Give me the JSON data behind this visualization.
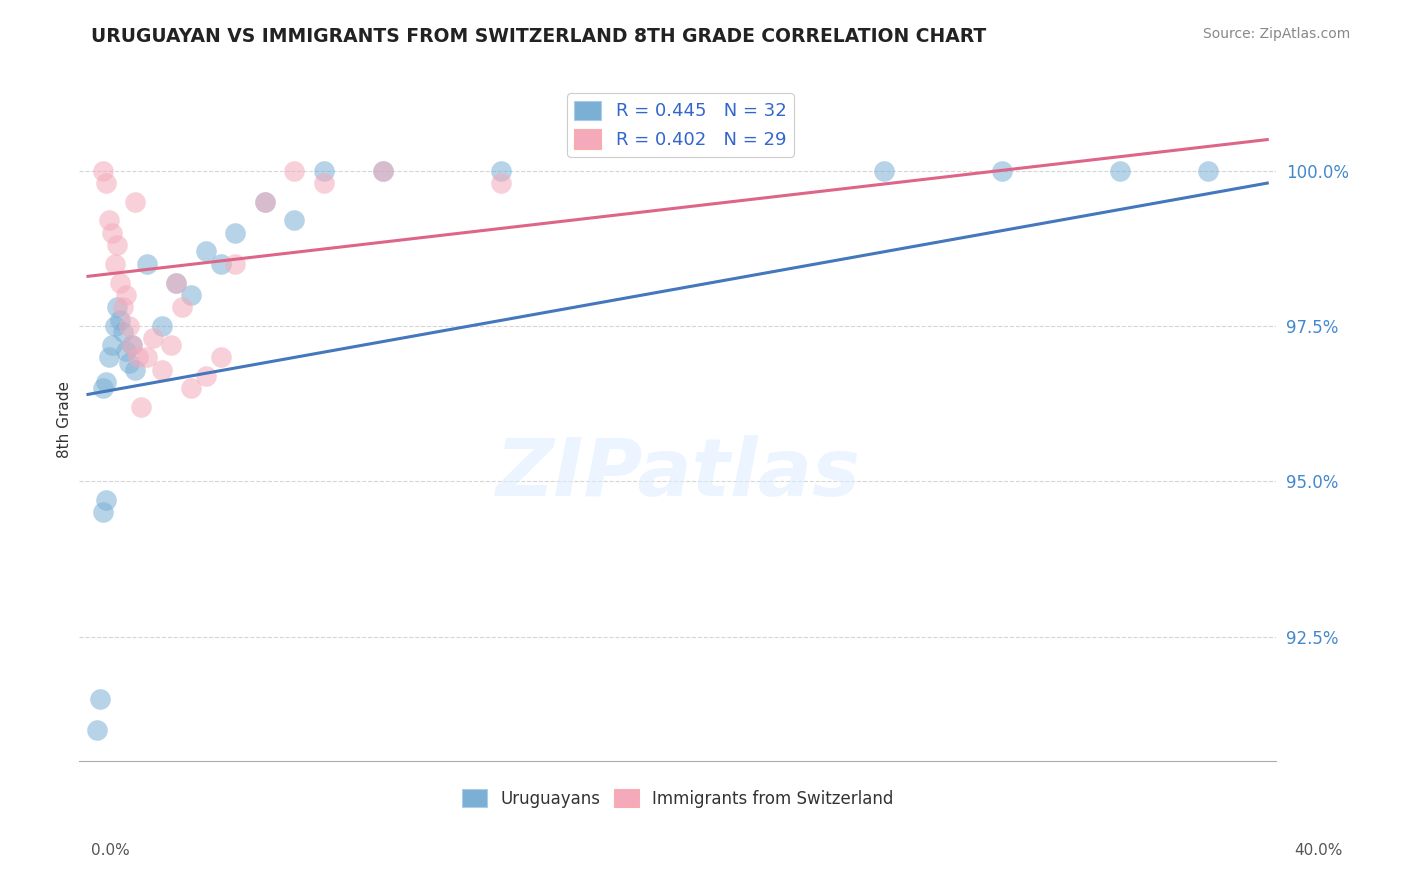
{
  "title": "URUGUAYAN VS IMMIGRANTS FROM SWITZERLAND 8TH GRADE CORRELATION CHART",
  "source": "Source: ZipAtlas.com",
  "ylabel": "8th Grade",
  "watermark": "ZIPatlas",
  "blue_color": "#7BAFD4",
  "pink_color": "#F4AABA",
  "blue_line_color": "#4477BB",
  "pink_line_color": "#DD6688",
  "legend_blue_label": "R = 0.445   N = 32",
  "legend_pink_label": "R = 0.402   N = 29",
  "blue_scatter_x": [
    0.5,
    0.6,
    0.7,
    0.8,
    0.9,
    1.0,
    1.1,
    1.2,
    1.3,
    1.4,
    1.5,
    1.6,
    2.0,
    2.5,
    3.0,
    3.5,
    4.0,
    4.5,
    5.0,
    6.0,
    7.0,
    8.0,
    10.0,
    14.0,
    27.0,
    31.0,
    35.0,
    38.0,
    0.3,
    0.4,
    0.5,
    0.6
  ],
  "blue_scatter_y": [
    96.5,
    96.6,
    97.0,
    97.2,
    97.5,
    97.8,
    97.6,
    97.4,
    97.1,
    96.9,
    97.2,
    96.8,
    98.5,
    97.5,
    98.2,
    98.0,
    98.7,
    98.5,
    99.0,
    99.5,
    99.2,
    100.0,
    100.0,
    100.0,
    100.0,
    100.0,
    100.0,
    100.0,
    91.0,
    91.5,
    94.5,
    94.7
  ],
  "pink_scatter_x": [
    0.5,
    0.6,
    0.7,
    0.8,
    0.9,
    1.0,
    1.1,
    1.2,
    1.3,
    1.4,
    1.5,
    2.0,
    2.5,
    3.0,
    3.5,
    4.0,
    4.5,
    5.0,
    6.0,
    7.0,
    8.0,
    10.0,
    14.0,
    1.8,
    2.2,
    3.2,
    1.6,
    1.7,
    2.8
  ],
  "pink_scatter_y": [
    100.0,
    99.8,
    99.2,
    99.0,
    98.5,
    98.8,
    98.2,
    97.8,
    98.0,
    97.5,
    97.2,
    97.0,
    96.8,
    98.2,
    96.5,
    96.7,
    97.0,
    98.5,
    99.5,
    100.0,
    99.8,
    100.0,
    99.8,
    96.2,
    97.3,
    97.8,
    99.5,
    97.0,
    97.2
  ],
  "blue_line_x": [
    0.0,
    40.0
  ],
  "blue_line_y": [
    96.4,
    99.8
  ],
  "pink_line_x": [
    0.0,
    40.0
  ],
  "pink_line_y": [
    98.3,
    100.5
  ],
  "xlim": [
    0.0,
    40.0
  ],
  "ylim": [
    90.5,
    101.5
  ],
  "yticks": [
    92.5,
    95.0,
    97.5,
    100.0
  ],
  "ytick_labels": [
    "92.5%",
    "95.0%",
    "97.5%",
    "100.0%"
  ]
}
